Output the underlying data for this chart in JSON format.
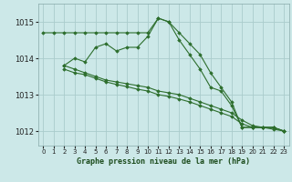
{
  "title": "Graphe pression niveau de la mer (hPa)",
  "bg_color": "#cce8e8",
  "grid_color": "#aacccc",
  "line_color": "#2d6e2d",
  "xlim": [
    -0.5,
    23.5
  ],
  "ylim": [
    1011.6,
    1015.5
  ],
  "yticks": [
    1012,
    1013,
    1014,
    1015
  ],
  "xticks": [
    0,
    1,
    2,
    3,
    4,
    5,
    6,
    7,
    8,
    9,
    10,
    11,
    12,
    13,
    14,
    15,
    16,
    17,
    18,
    19,
    20,
    21,
    22,
    23
  ],
  "series": [
    {
      "x": [
        0,
        1,
        2,
        3,
        4,
        5,
        6,
        7,
        8,
        9,
        10,
        11,
        12,
        13,
        14,
        15,
        16,
        17,
        18,
        19,
        20,
        21,
        22,
        23
      ],
      "y": [
        1014.7,
        1014.7,
        1014.7,
        1014.7,
        1014.7,
        1014.7,
        1014.7,
        1014.7,
        1014.7,
        1014.7,
        1014.7,
        1015.1,
        1015.0,
        1014.7,
        1014.4,
        1014.1,
        1013.6,
        1013.2,
        1012.8,
        1012.1,
        1012.1,
        1012.1,
        1012.1,
        1012.0
      ]
    },
    {
      "x": [
        2,
        3,
        4,
        5,
        6,
        7,
        8,
        9,
        10,
        11,
        12,
        13,
        14,
        15,
        16,
        17,
        18,
        19,
        20,
        21,
        22,
        23
      ],
      "y": [
        1013.8,
        1014.0,
        1013.9,
        1014.3,
        1014.4,
        1014.2,
        1014.3,
        1014.3,
        1014.6,
        1015.1,
        1015.0,
        1014.5,
        1014.1,
        1013.7,
        1013.2,
        1013.1,
        1012.7,
        1012.1,
        1012.1,
        1012.1,
        1012.1,
        1012.0
      ]
    },
    {
      "x": [
        2,
        3,
        4,
        5,
        6,
        7,
        8,
        9,
        10,
        11,
        12,
        13,
        14,
        15,
        16,
        17,
        18,
        19,
        20,
        21,
        22,
        23
      ],
      "y": [
        1013.8,
        1013.7,
        1013.6,
        1013.5,
        1013.4,
        1013.35,
        1013.3,
        1013.25,
        1013.2,
        1013.1,
        1013.05,
        1013.0,
        1012.9,
        1012.8,
        1012.7,
        1012.6,
        1012.5,
        1012.3,
        1012.15,
        1012.1,
        1012.1,
        1012.0
      ]
    },
    {
      "x": [
        2,
        3,
        4,
        5,
        6,
        7,
        8,
        9,
        10,
        11,
        12,
        13,
        14,
        15,
        16,
        17,
        18,
        19,
        20,
        21,
        22,
        23
      ],
      "y": [
        1013.7,
        1013.6,
        1013.55,
        1013.45,
        1013.35,
        1013.28,
        1013.22,
        1013.15,
        1013.1,
        1013.0,
        1012.95,
        1012.88,
        1012.8,
        1012.7,
        1012.6,
        1012.5,
        1012.4,
        1012.2,
        1012.1,
        1012.1,
        1012.05,
        1012.0
      ]
    }
  ]
}
